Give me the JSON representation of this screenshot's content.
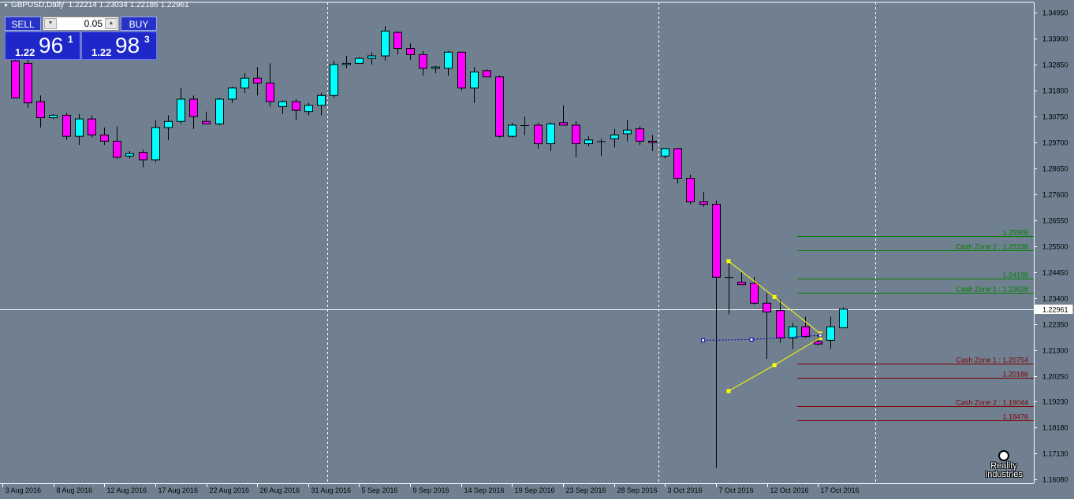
{
  "window": {
    "symbol_timeframe": "GBPUSD,Daily",
    "ohlc": "1.22214 1.23034 1.22186 1.22961"
  },
  "trade_panel": {
    "sell_label": "SELL",
    "buy_label": "BUY",
    "lot_value": "0.05",
    "sell_price": {
      "small": "1.22",
      "big": "96",
      "sup": "1"
    },
    "buy_price": {
      "small": "1.22",
      "big": "98",
      "sup": "3"
    }
  },
  "watermark": {
    "line1": "Reality",
    "line2": "Industries"
  },
  "colors": {
    "background": "#708090",
    "bull": "#00ffff",
    "bear": "#ff00ff",
    "wick": "#000000",
    "grid": "#ffffff",
    "zone_up": "#008000",
    "zone_down": "#800000",
    "triangle": "#ffff00",
    "dotted_line": "#0000b0"
  },
  "chart_data": {
    "type": "candlestick",
    "symbol": "GBPUSD",
    "timeframe": "Daily",
    "ylim": [
      1.16,
      1.351
    ],
    "y_ticks": [
      "1.34950",
      "1.33900",
      "1.32850",
      "1.31800",
      "1.30750",
      "1.29700",
      "1.28650",
      "1.27600",
      "1.26550",
      "1.25500",
      "1.24450",
      "1.23400",
      "1.22350",
      "1.21300",
      "1.20250",
      "1.19230",
      "1.18180",
      "1.17130",
      "1.16080"
    ],
    "x_labels": [
      {
        "index": 0,
        "label": "3 Aug 2016"
      },
      {
        "index": 4,
        "label": "8 Aug 2016"
      },
      {
        "index": 8,
        "label": "12 Aug 2016"
      },
      {
        "index": 12,
        "label": "17 Aug 2016"
      },
      {
        "index": 16,
        "label": "22 Aug 2016"
      },
      {
        "index": 20,
        "label": "26 Aug 2016"
      },
      {
        "index": 24,
        "label": "31 Aug 2016"
      },
      {
        "index": 28,
        "label": "5 Sep 2016"
      },
      {
        "index": 32,
        "label": "9 Sep 2016"
      },
      {
        "index": 36,
        "label": "14 Sep 2016"
      },
      {
        "index": 40,
        "label": "19 Sep 2016"
      },
      {
        "index": 44,
        "label": "23 Sep 2016"
      },
      {
        "index": 48,
        "label": "28 Sep 2016"
      },
      {
        "index": 52,
        "label": "3 Oct 2016"
      },
      {
        "index": 56,
        "label": "7 Oct 2016"
      },
      {
        "index": 60,
        "label": "12 Oct 2016"
      },
      {
        "index": 64,
        "label": "17 Oct 2016"
      }
    ],
    "vertical_separators": [
      25,
      51,
      68
    ],
    "candles": [
      {
        "o": 1.33,
        "h": 1.3325,
        "l": 1.315,
        "c": 1.315
      },
      {
        "o": 1.329,
        "h": 1.333,
        "l": 1.311,
        "c": 1.313
      },
      {
        "o": 1.3135,
        "h": 1.316,
        "l": 1.303,
        "c": 1.307
      },
      {
        "o": 1.307,
        "h": 1.3085,
        "l": 1.3065,
        "c": 1.308
      },
      {
        "o": 1.308,
        "h": 1.309,
        "l": 1.298,
        "c": 1.2995
      },
      {
        "o": 1.2995,
        "h": 1.3085,
        "l": 1.296,
        "c": 1.3065
      },
      {
        "o": 1.3065,
        "h": 1.308,
        "l": 1.299,
        "c": 1.3
      },
      {
        "o": 1.3,
        "h": 1.303,
        "l": 1.296,
        "c": 1.2975
      },
      {
        "o": 1.2975,
        "h": 1.3035,
        "l": 1.2905,
        "c": 1.291
      },
      {
        "o": 1.2915,
        "h": 1.2935,
        "l": 1.2905,
        "c": 1.2925
      },
      {
        "o": 1.293,
        "h": 1.294,
        "l": 1.287,
        "c": 1.29
      },
      {
        "o": 1.29,
        "h": 1.306,
        "l": 1.289,
        "c": 1.303
      },
      {
        "o": 1.303,
        "h": 1.308,
        "l": 1.298,
        "c": 1.3055
      },
      {
        "o": 1.3055,
        "h": 1.319,
        "l": 1.3045,
        "c": 1.3145
      },
      {
        "o": 1.3145,
        "h": 1.316,
        "l": 1.3025,
        "c": 1.3075
      },
      {
        "o": 1.3055,
        "h": 1.3095,
        "l": 1.3045,
        "c": 1.3045
      },
      {
        "o": 1.3045,
        "h": 1.315,
        "l": 1.304,
        "c": 1.3145
      },
      {
        "o": 1.3145,
        "h": 1.3195,
        "l": 1.313,
        "c": 1.319
      },
      {
        "o": 1.319,
        "h": 1.325,
        "l": 1.317,
        "c": 1.323
      },
      {
        "o": 1.323,
        "h": 1.3275,
        "l": 1.316,
        "c": 1.321
      },
      {
        "o": 1.321,
        "h": 1.329,
        "l": 1.3115,
        "c": 1.3135
      },
      {
        "o": 1.3115,
        "h": 1.314,
        "l": 1.3085,
        "c": 1.3135
      },
      {
        "o": 1.3135,
        "h": 1.3145,
        "l": 1.306,
        "c": 1.31
      },
      {
        "o": 1.3095,
        "h": 1.313,
        "l": 1.308,
        "c": 1.312
      },
      {
        "o": 1.312,
        "h": 1.317,
        "l": 1.308,
        "c": 1.316
      },
      {
        "o": 1.316,
        "h": 1.33,
        "l": 1.315,
        "c": 1.3285
      },
      {
        "o": 1.3285,
        "h": 1.332,
        "l": 1.327,
        "c": 1.329
      },
      {
        "o": 1.329,
        "h": 1.3315,
        "l": 1.329,
        "c": 1.331
      },
      {
        "o": 1.331,
        "h": 1.3335,
        "l": 1.3285,
        "c": 1.332
      },
      {
        "o": 1.332,
        "h": 1.344,
        "l": 1.33,
        "c": 1.342
      },
      {
        "o": 1.3415,
        "h": 1.342,
        "l": 1.3325,
        "c": 1.335
      },
      {
        "o": 1.335,
        "h": 1.337,
        "l": 1.3305,
        "c": 1.3325
      },
      {
        "o": 1.3325,
        "h": 1.334,
        "l": 1.324,
        "c": 1.327
      },
      {
        "o": 1.327,
        "h": 1.328,
        "l": 1.325,
        "c": 1.3275
      },
      {
        "o": 1.327,
        "h": 1.334,
        "l": 1.324,
        "c": 1.3335
      },
      {
        "o": 1.3335,
        "h": 1.3335,
        "l": 1.318,
        "c": 1.319
      },
      {
        "o": 1.319,
        "h": 1.3275,
        "l": 1.313,
        "c": 1.3255
      },
      {
        "o": 1.326,
        "h": 1.3265,
        "l": 1.324,
        "c": 1.3235
      },
      {
        "o": 1.3235,
        "h": 1.324,
        "l": 1.299,
        "c": 1.2995
      },
      {
        "o": 1.2995,
        "h": 1.305,
        "l": 1.299,
        "c": 1.304
      },
      {
        "o": 1.304,
        "h": 1.3075,
        "l": 1.3,
        "c": 1.304
      },
      {
        "o": 1.304,
        "h": 1.305,
        "l": 1.2945,
        "c": 1.2965
      },
      {
        "o": 1.2965,
        "h": 1.305,
        "l": 1.2935,
        "c": 1.3045
      },
      {
        "o": 1.305,
        "h": 1.312,
        "l": 1.3045,
        "c": 1.304
      },
      {
        "o": 1.304,
        "h": 1.3055,
        "l": 1.291,
        "c": 1.2965
      },
      {
        "o": 1.2965,
        "h": 1.2995,
        "l": 1.2955,
        "c": 1.298
      },
      {
        "o": 1.2975,
        "h": 1.2985,
        "l": 1.2915,
        "c": 1.2975
      },
      {
        "o": 1.2985,
        "h": 1.3025,
        "l": 1.295,
        "c": 1.3
      },
      {
        "o": 1.3005,
        "h": 1.306,
        "l": 1.2975,
        "c": 1.302
      },
      {
        "o": 1.3025,
        "h": 1.3035,
        "l": 1.296,
        "c": 1.2975
      },
      {
        "o": 1.2975,
        "h": 1.3,
        "l": 1.2935,
        "c": 1.297
      },
      {
        "o": 1.2915,
        "h": 1.2945,
        "l": 1.2905,
        "c": 1.2945
      },
      {
        "o": 1.2945,
        "h": 1.2945,
        "l": 1.2805,
        "c": 1.2825
      },
      {
        "o": 1.2825,
        "h": 1.284,
        "l": 1.272,
        "c": 1.273
      },
      {
        "o": 1.273,
        "h": 1.277,
        "l": 1.271,
        "c": 1.272
      },
      {
        "o": 1.272,
        "h": 1.2735,
        "l": 1.1655,
        "c": 1.2425
      },
      {
        "o": 1.2425,
        "h": 1.2485,
        "l": 1.2275,
        "c": 1.2425
      },
      {
        "o": 1.2405,
        "h": 1.2445,
        "l": 1.2395,
        "c": 1.2395
      },
      {
        "o": 1.24,
        "h": 1.2425,
        "l": 1.2315,
        "c": 1.232
      },
      {
        "o": 1.232,
        "h": 1.236,
        "l": 1.2095,
        "c": 1.2285
      },
      {
        "o": 1.229,
        "h": 1.2335,
        "l": 1.216,
        "c": 1.218
      },
      {
        "o": 1.218,
        "h": 1.224,
        "l": 1.2135,
        "c": 1.2225
      },
      {
        "o": 1.2225,
        "h": 1.2265,
        "l": 1.218,
        "c": 1.2185
      },
      {
        "o": 1.2165,
        "h": 1.219,
        "l": 1.215,
        "c": 1.2155
      },
      {
        "o": 1.217,
        "h": 1.2265,
        "l": 1.2135,
        "c": 1.2225
      },
      {
        "o": 1.2221,
        "h": 1.2303,
        "l": 1.2219,
        "c": 1.2296
      }
    ],
    "current_price": 1.22961,
    "current_price_label": "1.22961",
    "levels": [
      {
        "price": 1.25906,
        "label": "1.25906",
        "side": "up"
      },
      {
        "price": 1.25338,
        "label": "Cash Zone 2 : 1.25338",
        "side": "up"
      },
      {
        "price": 1.24196,
        "label": "1.24196",
        "side": "up"
      },
      {
        "price": 1.23628,
        "label": "Cash Zone 1 : 1.23628",
        "side": "up"
      },
      {
        "price": 1.20754,
        "label": "Cash Zone 1 : 1.20754",
        "side": "down"
      },
      {
        "price": 1.20186,
        "label": "1.20186",
        "side": "down"
      },
      {
        "price": 1.19044,
        "label": "Cash Zone 2 : 1.19044",
        "side": "down"
      },
      {
        "price": 1.18476,
        "label": "1.18476",
        "side": "down"
      }
    ],
    "triangle": {
      "upper": [
        {
          "i": 56,
          "p": 1.249
        },
        {
          "i": 59.6,
          "p": 1.2345
        },
        {
          "i": 63.2,
          "p": 1.2197
        }
      ],
      "lower": [
        {
          "i": 56,
          "p": 1.1965
        },
        {
          "i": 59.6,
          "p": 1.207
        },
        {
          "i": 63.2,
          "p": 1.218
        }
      ]
    },
    "dotted_line": [
      {
        "i": 54,
        "p": 1.217
      },
      {
        "i": 57.8,
        "p": 1.2173
      },
      {
        "i": 63.2,
        "p": 1.219
      }
    ]
  }
}
